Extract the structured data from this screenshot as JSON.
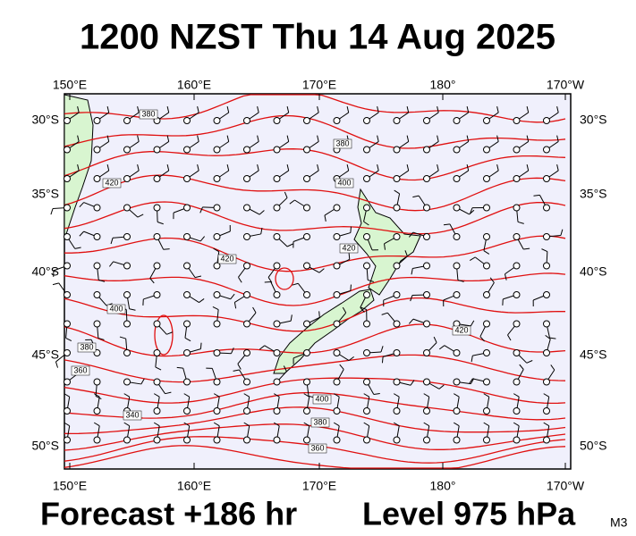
{
  "header": {
    "title": "1200 NZST Thu 14 Aug 2025"
  },
  "longitude_labels": [
    "150°E",
    "160°E",
    "170°E",
    "180°",
    "170°W"
  ],
  "latitude_labels": [
    "30°S",
    "35°S",
    "40°S",
    "45°S",
    "50°S"
  ],
  "contour_labels": [
    "380",
    "380",
    "400",
    "420",
    "420",
    "420",
    "400",
    "380",
    "360",
    "340",
    "400",
    "380",
    "360",
    "420"
  ],
  "footer": {
    "forecast": "Forecast +186 hr",
    "level": "Level 975 hPa",
    "model": "M3"
  }
}
